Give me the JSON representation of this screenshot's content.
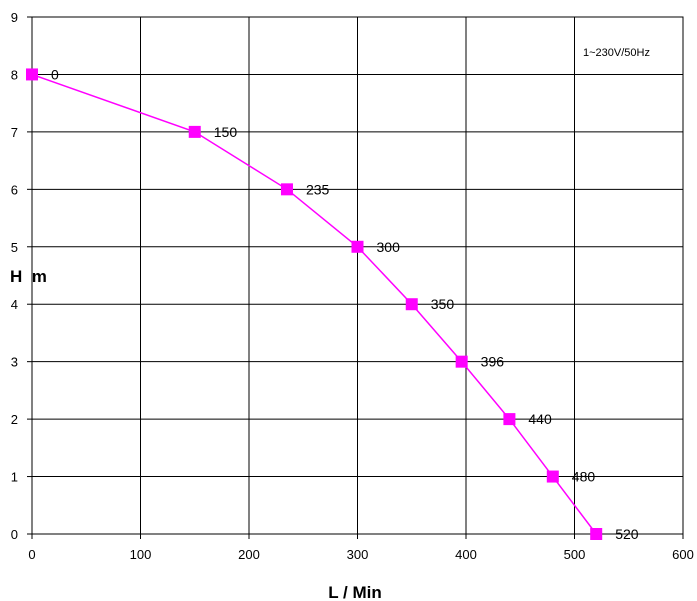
{
  "chart_data": {
    "type": "line",
    "title": "",
    "xlabel": "L /  Min",
    "ylabel": "H  m",
    "annotation": "1~230V/50Hz",
    "xlim": [
      0,
      600
    ],
    "ylim": [
      0,
      9
    ],
    "xticks": [
      0,
      100,
      200,
      300,
      400,
      500,
      600
    ],
    "yticks": [
      0,
      1,
      2,
      3,
      4,
      5,
      6,
      7,
      8,
      9
    ],
    "grid": true,
    "series": [
      {
        "color": "#ff00ff",
        "marker": "square",
        "points": [
          {
            "x": 0,
            "y": 8,
            "label": "0"
          },
          {
            "x": 150,
            "y": 7,
            "label": "150"
          },
          {
            "x": 235,
            "y": 6,
            "label": "235"
          },
          {
            "x": 300,
            "y": 5,
            "label": "300"
          },
          {
            "x": 350,
            "y": 4,
            "label": "350"
          },
          {
            "x": 396,
            "y": 3,
            "label": "396"
          },
          {
            "x": 440,
            "y": 2,
            "label": "440"
          },
          {
            "x": 480,
            "y": 1,
            "label": "480"
          },
          {
            "x": 520,
            "y": 0,
            "label": "520"
          }
        ]
      }
    ]
  }
}
